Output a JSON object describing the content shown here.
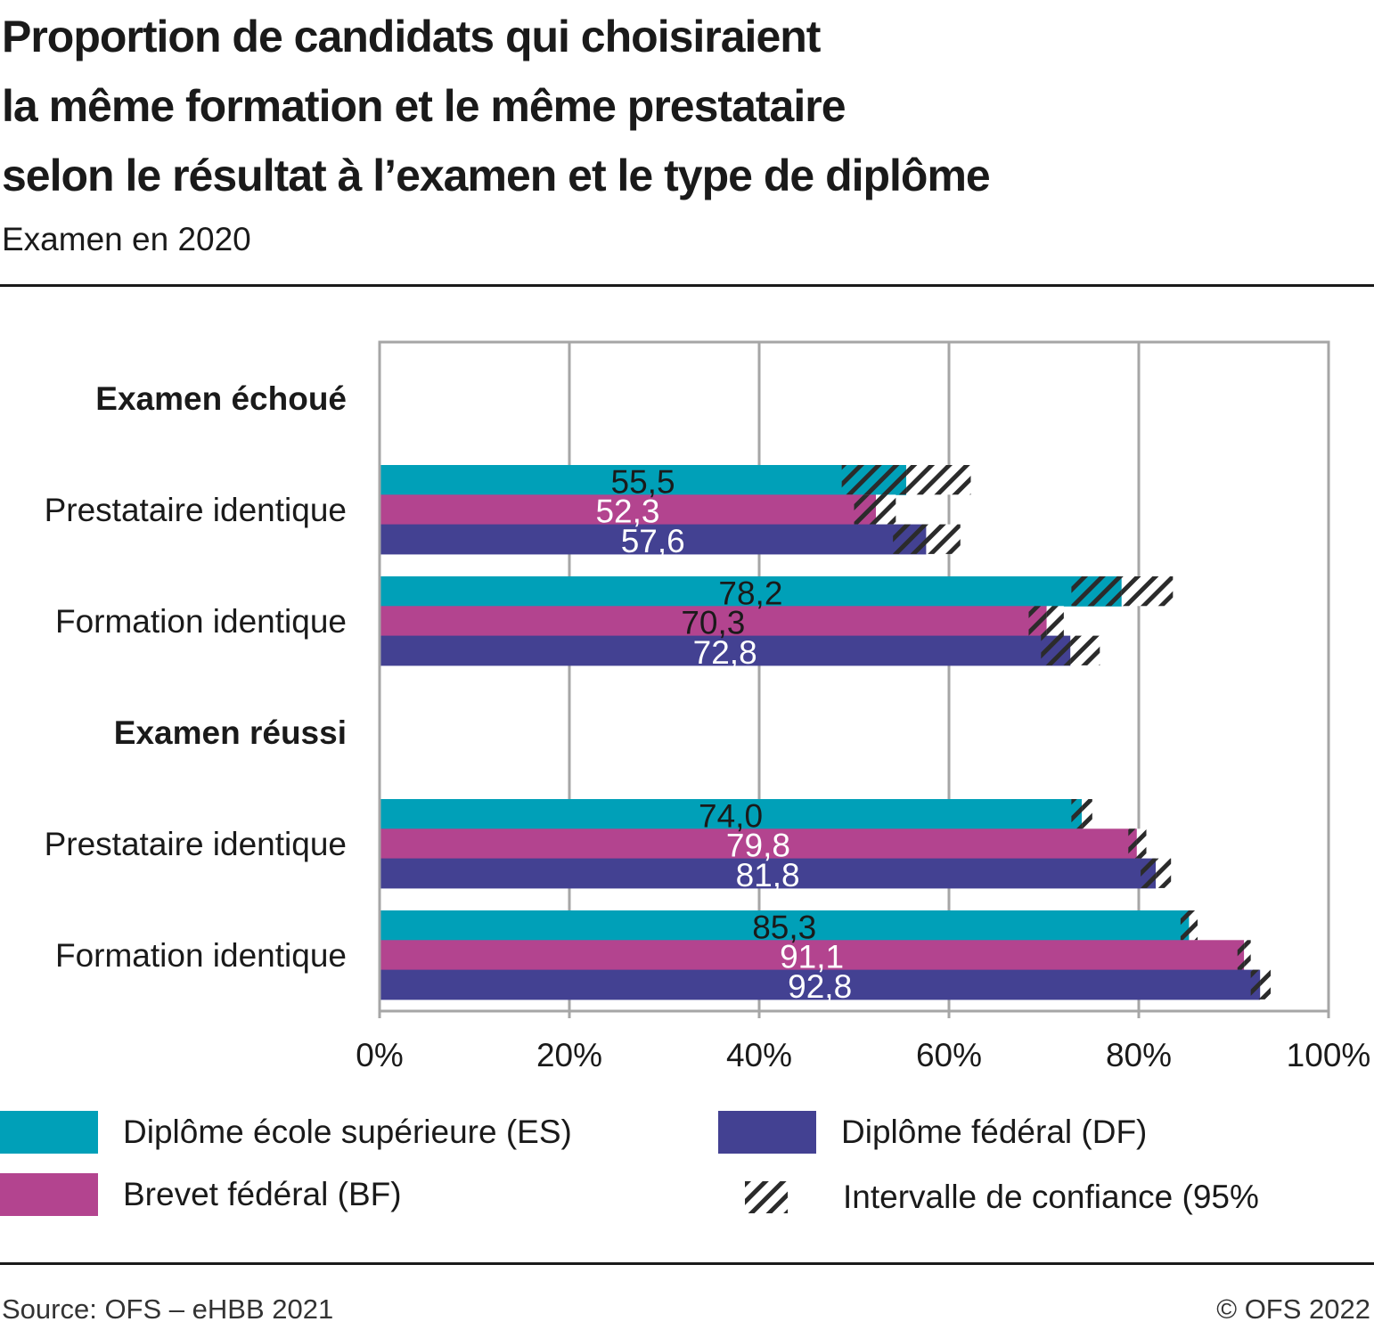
{
  "header": {
    "title_lines": [
      "Proportion de candidats qui choisiraient",
      "la même formation et le même prestataire",
      "selon le résultat à l’examen et le type de diplôme"
    ],
    "subtitle": "Examen en 2020"
  },
  "footer": {
    "source": "Source: OFS – eHBB 2021",
    "copyright": "© OFS 2022"
  },
  "colors": {
    "ES": "#00a0b8",
    "BF": "#b3448f",
    "DF": "#434192",
    "grid": "#a6a6a6",
    "hatch": "#2b2b2b"
  },
  "chart_data": {
    "type": "bar",
    "orientation": "horizontal",
    "title": "Proportion de candidats qui choisiraient la même formation et le même prestataire selon le résultat à l’examen et le type de diplôme",
    "subtitle": "Examen en 2020",
    "xlabel": "",
    "ylabel": "",
    "xlim": [
      0,
      100
    ],
    "x_ticks": [
      "0%",
      "20%",
      "40%",
      "60%",
      "80%",
      "100%"
    ],
    "grid": true,
    "legend_position": "bottom",
    "groups": [
      {
        "heading": "Examen échoué",
        "categories": [
          {
            "label": "Prestataire identique",
            "bars": [
              {
                "series": "ES",
                "value": 55.5,
                "label": "55,5",
                "ci": [
                  48.7,
                  62.3
                ],
                "label_color": "#1a1a1a"
              },
              {
                "series": "BF",
                "value": 52.3,
                "label": "52,3",
                "ci": [
                  50.0,
                  54.4
                ],
                "label_color": "#ffffff"
              },
              {
                "series": "DF",
                "value": 57.6,
                "label": "57,6",
                "ci": [
                  54.1,
                  61.2
                ],
                "label_color": "#ffffff"
              }
            ]
          },
          {
            "label": "Formation identique",
            "bars": [
              {
                "series": "ES",
                "value": 78.2,
                "label": "78,2",
                "ci": [
                  72.9,
                  83.6
                ],
                "label_color": "#1a1a1a"
              },
              {
                "series": "BF",
                "value": 70.3,
                "label": "70,3",
                "ci": [
                  68.4,
                  72.1
                ],
                "label_color": "#1a1a1a"
              },
              {
                "series": "DF",
                "value": 72.8,
                "label": "72,8",
                "ci": [
                  69.7,
                  75.9
                ],
                "label_color": "#ffffff"
              }
            ]
          }
        ]
      },
      {
        "heading": "Examen réussi",
        "categories": [
          {
            "label": "Prestataire identique",
            "bars": [
              {
                "series": "ES",
                "value": 74.0,
                "label": "74,0",
                "ci": [
                  72.9,
                  75.1
                ],
                "label_color": "#1a1a1a"
              },
              {
                "series": "BF",
                "value": 79.8,
                "label": "79,8",
                "ci": [
                  78.9,
                  80.8
                ],
                "label_color": "#ffffff"
              },
              {
                "series": "DF",
                "value": 81.8,
                "label": "81,8",
                "ci": [
                  80.2,
                  83.4
                ],
                "label_color": "#ffffff"
              }
            ]
          },
          {
            "label": "Formation identique",
            "bars": [
              {
                "series": "ES",
                "value": 85.3,
                "label": "85,3",
                "ci": [
                  84.4,
                  86.2
                ],
                "label_color": "#1a1a1a"
              },
              {
                "series": "BF",
                "value": 91.1,
                "label": "91,1",
                "ci": [
                  90.4,
                  91.8
                ],
                "label_color": "#ffffff"
              },
              {
                "series": "DF",
                "value": 92.8,
                "label": "92,8",
                "ci": [
                  91.8,
                  93.9
                ],
                "label_color": "#ffffff"
              }
            ]
          }
        ]
      }
    ],
    "series": [
      {
        "key": "ES",
        "name": "Diplôme école supérieure (ES)"
      },
      {
        "key": "BF",
        "name": "Brevet fédéral (BF)"
      },
      {
        "key": "DF",
        "name": "Diplôme fédéral (DF)"
      }
    ],
    "ci_legend": "Intervalle de confiance (95%"
  }
}
